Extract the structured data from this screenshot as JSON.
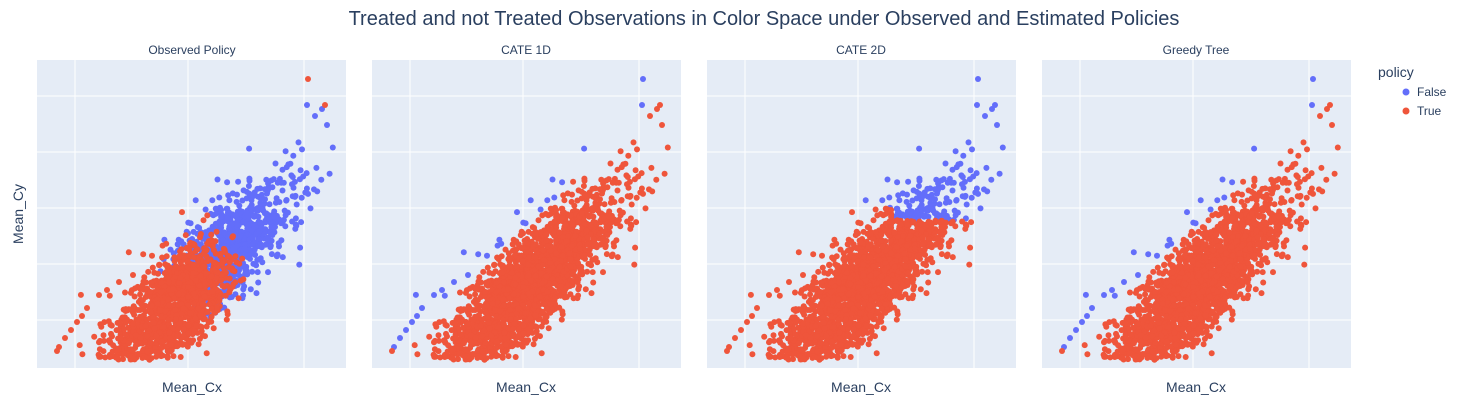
{
  "chart_data": {
    "type": "scatter",
    "title": "Treated and not Treated Observations in Color Space under Observed and Estimated Policies",
    "xlabel": "Mean_Cx",
    "ylabel": "Mean_Cy",
    "tick_labels_shown": false,
    "grid": true,
    "legend": {
      "title": "policy",
      "placement": "top-right",
      "entries": [
        {
          "name": "False",
          "color": "#636efa"
        },
        {
          "name": "True",
          "color": "#ef553b"
        }
      ]
    },
    "panels": [
      {
        "title": "Observed Policy",
        "rule": "observed"
      },
      {
        "title": "CATE 1D",
        "rule": "diagonal"
      },
      {
        "title": "CATE 2D",
        "rule": "stepped"
      },
      {
        "title": "Greedy Tree",
        "rule": "diagonal"
      }
    ],
    "colors": {
      "false": "#636efa",
      "true": "#ef553b",
      "plot_bg": "#e5ecf6",
      "grid": "#ffffff",
      "text": "#2a3f5f"
    }
  }
}
